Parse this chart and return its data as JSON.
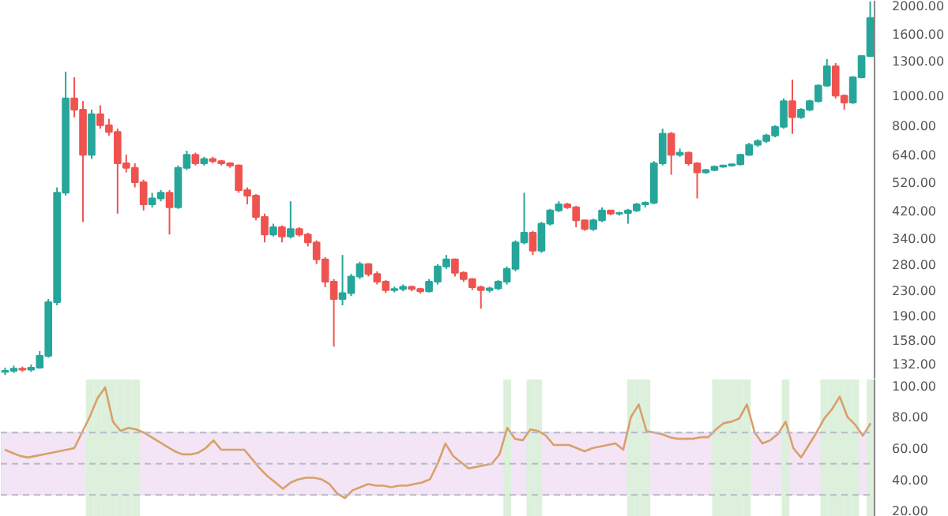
{
  "chart_data": [
    {
      "type": "candlestick",
      "log": "y",
      "tick_labels": "y",
      "grid": false,
      "categories": [
        null,
        null,
        null,
        null,
        null,
        null,
        null,
        null,
        null,
        null,
        null,
        null,
        null,
        null,
        null,
        null,
        null,
        null,
        null,
        null,
        null,
        null,
        null,
        null,
        null,
        null,
        null,
        null,
        null,
        null,
        null,
        null,
        null,
        null,
        null,
        null,
        null,
        null,
        null,
        null,
        null,
        null,
        null,
        null,
        null,
        null,
        null,
        null,
        null,
        null,
        null,
        null,
        null,
        null,
        null,
        null,
        null,
        null,
        null,
        null,
        null,
        null,
        null,
        null,
        null,
        null,
        null,
        null,
        null,
        null,
        null,
        null,
        null,
        null,
        null,
        null,
        null,
        null,
        null,
        null,
        null,
        null,
        null,
        null,
        null,
        null,
        null,
        null,
        null,
        null,
        null,
        null,
        null,
        null,
        null,
        null,
        null,
        null,
        null,
        null,
        null
      ],
      "ylim": [
        117,
        2050
      ],
      "yticks": [
        {
          "value": 132,
          "label": "132.00"
        },
        {
          "value": 158,
          "label": "158.00"
        },
        {
          "value": 190,
          "label": "190.00"
        },
        {
          "value": 230,
          "label": "230.00"
        },
        {
          "value": 280,
          "label": "280.00"
        },
        {
          "value": 340,
          "label": "340.00"
        },
        {
          "value": 420,
          "label": "420.00"
        },
        {
          "value": 520,
          "label": "520.00"
        },
        {
          "value": 640,
          "label": "640.00"
        },
        {
          "value": 800,
          "label": "800.00"
        },
        {
          "value": 1000,
          "label": "1000.00"
        },
        {
          "value": 1300,
          "label": "1300.00"
        },
        {
          "value": 1600,
          "label": "1600.00"
        },
        {
          "value": 2000,
          "label": "2000.00"
        }
      ],
      "ohlc": [
        [
          124,
          128,
          121,
          125
        ],
        [
          125,
          130,
          123,
          127
        ],
        [
          127,
          129,
          124,
          126
        ],
        [
          126,
          131,
          124,
          128
        ],
        [
          128,
          145,
          127,
          140
        ],
        [
          140,
          215,
          138,
          210
        ],
        [
          210,
          500,
          205,
          480
        ],
        [
          480,
          1200,
          470,
          980
        ],
        [
          980,
          1150,
          850,
          900
        ],
        [
          900,
          960,
          385,
          640
        ],
        [
          640,
          900,
          620,
          870
        ],
        [
          870,
          930,
          780,
          800
        ],
        [
          800,
          840,
          740,
          760
        ],
        [
          760,
          780,
          410,
          600
        ],
        [
          600,
          640,
          560,
          580
        ],
        [
          580,
          600,
          500,
          520
        ],
        [
          520,
          530,
          420,
          440
        ],
        [
          440,
          480,
          430,
          460
        ],
        [
          460,
          490,
          450,
          480
        ],
        [
          480,
          490,
          350,
          430
        ],
        [
          430,
          590,
          425,
          580
        ],
        [
          580,
          660,
          570,
          640
        ],
        [
          640,
          650,
          590,
          600
        ],
        [
          600,
          630,
          590,
          620
        ],
        [
          620,
          630,
          600,
          610
        ],
        [
          610,
          615,
          590,
          600
        ],
        [
          600,
          605,
          580,
          590
        ],
        [
          590,
          595,
          480,
          490
        ],
        [
          490,
          500,
          440,
          470
        ],
        [
          470,
          475,
          390,
          400
        ],
        [
          400,
          410,
          330,
          350
        ],
        [
          350,
          380,
          345,
          370
        ],
        [
          370,
          375,
          330,
          345
        ],
        [
          345,
          450,
          340,
          365
        ],
        [
          365,
          370,
          345,
          350
        ],
        [
          350,
          355,
          320,
          330
        ],
        [
          330,
          335,
          280,
          290
        ],
        [
          290,
          295,
          235,
          245
        ],
        [
          245,
          250,
          150,
          215
        ],
        [
          215,
          300,
          205,
          225
        ],
        [
          225,
          260,
          220,
          255
        ],
        [
          255,
          285,
          250,
          280
        ],
        [
          280,
          282,
          255,
          260
        ],
        [
          260,
          265,
          240,
          245
        ],
        [
          245,
          248,
          225,
          230
        ],
        [
          230,
          236,
          226,
          232
        ],
        [
          232,
          240,
          228,
          236
        ],
        [
          236,
          238,
          228,
          232
        ],
        [
          232,
          234,
          224,
          228
        ],
        [
          228,
          250,
          226,
          245
        ],
        [
          245,
          280,
          240,
          275
        ],
        [
          275,
          300,
          270,
          290
        ],
        [
          290,
          292,
          255,
          262
        ],
        [
          262,
          265,
          245,
          250
        ],
        [
          250,
          252,
          230,
          235
        ],
        [
          235,
          238,
          200,
          230
        ],
        [
          230,
          236,
          226,
          233
        ],
        [
          233,
          248,
          230,
          245
        ],
        [
          245,
          275,
          240,
          270
        ],
        [
          270,
          335,
          265,
          330
        ],
        [
          330,
          480,
          325,
          355
        ],
        [
          355,
          360,
          300,
          310
        ],
        [
          310,
          385,
          305,
          380
        ],
        [
          380,
          425,
          375,
          420
        ],
        [
          420,
          450,
          415,
          440
        ],
        [
          440,
          445,
          425,
          430
        ],
        [
          430,
          435,
          370,
          390
        ],
        [
          390,
          392,
          360,
          365
        ],
        [
          365,
          395,
          360,
          390
        ],
        [
          390,
          430,
          385,
          420
        ],
        [
          420,
          422,
          405,
          410
        ],
        [
          410,
          416,
          404,
          412
        ],
        [
          412,
          425,
          380,
          420
        ],
        [
          420,
          445,
          415,
          440
        ],
        [
          440,
          450,
          430,
          445
        ],
        [
          445,
          610,
          440,
          600
        ],
        [
          600,
          780,
          590,
          750
        ],
        [
          750,
          760,
          550,
          640
        ],
        [
          640,
          670,
          630,
          650
        ],
        [
          650,
          655,
          590,
          600
        ],
        [
          600,
          605,
          460,
          560
        ],
        [
          560,
          575,
          555,
          570
        ],
        [
          570,
          590,
          565,
          585
        ],
        [
          585,
          592,
          580,
          590
        ],
        [
          590,
          598,
          585,
          595
        ],
        [
          595,
          645,
          590,
          640
        ],
        [
          640,
          700,
          635,
          690
        ],
        [
          690,
          720,
          680,
          710
        ],
        [
          710,
          750,
          700,
          740
        ],
        [
          740,
          800,
          730,
          790
        ],
        [
          790,
          980,
          780,
          960
        ],
        [
          960,
          1130,
          750,
          850
        ],
        [
          850,
          910,
          840,
          900
        ],
        [
          900,
          970,
          890,
          960
        ],
        [
          960,
          1090,
          950,
          1080
        ],
        [
          1080,
          1320,
          1070,
          1250
        ],
        [
          1250,
          1280,
          980,
          1000
        ],
        [
          1000,
          1010,
          900,
          950
        ],
        [
          950,
          1160,
          940,
          1150
        ],
        [
          1150,
          1360,
          1140,
          1350
        ],
        [
          1350,
          2040,
          1340,
          1800
        ]
      ],
      "colors": [
        "#26a69a",
        "#26a69a",
        "#ef5350",
        "#26a69a",
        "#26a69a",
        "#26a69a",
        "#26a69a",
        "#26a69a",
        "#ef5350",
        "#ef5350",
        "#26a69a",
        "#ef5350",
        "#ef5350",
        "#ef5350",
        "#ef5350",
        "#ef5350",
        "#ef5350",
        "#26a69a",
        "#26a69a",
        "#ef5350",
        "#26a69a",
        "#26a69a",
        "#ef5350",
        "#26a69a",
        "#ef5350",
        "#ef5350",
        "#ef5350",
        "#ef5350",
        "#ef5350",
        "#ef5350",
        "#ef5350",
        "#26a69a",
        "#ef5350",
        "#26a69a",
        "#ef5350",
        "#ef5350",
        "#ef5350",
        "#ef5350",
        "#ef5350",
        "#26a69a",
        "#26a69a",
        "#26a69a",
        "#ef5350",
        "#ef5350",
        "#ef5350",
        "#26a69a",
        "#26a69a",
        "#ef5350",
        "#ef5350",
        "#26a69a",
        "#26a69a",
        "#26a69a",
        "#ef5350",
        "#ef5350",
        "#ef5350",
        "#ef5350",
        "#26a69a",
        "#26a69a",
        "#26a69a",
        "#26a69a",
        "#26a69a",
        "#ef5350",
        "#26a69a",
        "#26a69a",
        "#26a69a",
        "#ef5350",
        "#ef5350",
        "#ef5350",
        "#26a69a",
        "#26a69a",
        "#ef5350",
        "#26a69a",
        "#26a69a",
        "#26a69a",
        "#26a69a",
        "#26a69a",
        "#26a69a",
        "#ef5350",
        "#26a69a",
        "#ef5350",
        "#ef5350",
        "#26a69a",
        "#26a69a",
        "#26a69a",
        "#26a69a",
        "#26a69a",
        "#26a69a",
        "#26a69a",
        "#26a69a",
        "#26a69a",
        "#26a69a",
        "#ef5350",
        "#26a69a",
        "#26a69a",
        "#26a69a",
        "#26a69a",
        "#ef5350",
        "#ef5350",
        "#26a69a",
        "#26a69a",
        "#26a69a"
      ]
    },
    {
      "type": "line",
      "tick_labels": "y",
      "grid": false,
      "categories": [
        null,
        null,
        null,
        null,
        null,
        null,
        null,
        null,
        null,
        null,
        null,
        null,
        null,
        null,
        null,
        null,
        null,
        null,
        null,
        null,
        null,
        null,
        null,
        null,
        null,
        null,
        null,
        null,
        null,
        null,
        null,
        null,
        null,
        null,
        null,
        null,
        null,
        null,
        null,
        null,
        null,
        null,
        null,
        null,
        null,
        null,
        null,
        null,
        null,
        null,
        null,
        null,
        null,
        null,
        null,
        null,
        null,
        null,
        null,
        null,
        null,
        null,
        null,
        null,
        null,
        null,
        null,
        null,
        null,
        null,
        null,
        null,
        null,
        null,
        null,
        null,
        null,
        null,
        null,
        null,
        null,
        null,
        null,
        null,
        null,
        null,
        null,
        null,
        null,
        null,
        null,
        null,
        null,
        null,
        null,
        null,
        null,
        null,
        null,
        null,
        null,
        null,
        null,
        null,
        null,
        null,
        null,
        null,
        null,
        null,
        null,
        null,
        null
      ],
      "ylim": [
        16,
        104
      ],
      "yticks": [
        {
          "value": 20,
          "label": "20.00"
        },
        {
          "value": 40,
          "label": "40.00"
        },
        {
          "value": 60,
          "label": "60.00"
        },
        {
          "value": 80,
          "label": "80.00"
        },
        {
          "value": 100,
          "label": "100.00"
        }
      ],
      "series": [
        {
          "color": "#d9a06a",
          "values": [
            59,
            57,
            55,
            54,
            55,
            56,
            57,
            58,
            59,
            60,
            70,
            80,
            92,
            99,
            77,
            71,
            73,
            72,
            70,
            67,
            64,
            61,
            58,
            56,
            56,
            57,
            60,
            65,
            59,
            59,
            59,
            59,
            53,
            47,
            42,
            38,
            34,
            38,
            40,
            41,
            41,
            40,
            37,
            31,
            28,
            33,
            35,
            37,
            36,
            36,
            35,
            36,
            36,
            37,
            38,
            40,
            50,
            63,
            55,
            51,
            47,
            48,
            49,
            50,
            56,
            73,
            66,
            65,
            72,
            71,
            68,
            62,
            62,
            62,
            60,
            58,
            60,
            61,
            62,
            63,
            59,
            80,
            88,
            71,
            70,
            69,
            67,
            66,
            66,
            66,
            67,
            67,
            72,
            76,
            77,
            79,
            88,
            70,
            63,
            65,
            69,
            77,
            60,
            54,
            62,
            70,
            79,
            85,
            93,
            80,
            75,
            68,
            76
          ]
        }
      ],
      "bands": [
        {
          "axis": "y",
          "from": 30,
          "to": 70,
          "color": "#f3e5f5"
        }
      ],
      "ref_lines": [
        {
          "axis": "y",
          "value": 70,
          "color": "#b8b8c8",
          "line_style": "dashed"
        },
        {
          "axis": "y",
          "value": 50,
          "color": "#b8b8c8",
          "line_style": "dashed"
        },
        {
          "axis": "y",
          "value": 30,
          "color": "#b8b8c8",
          "line_style": "dashed"
        }
      ]
    }
  ]
}
